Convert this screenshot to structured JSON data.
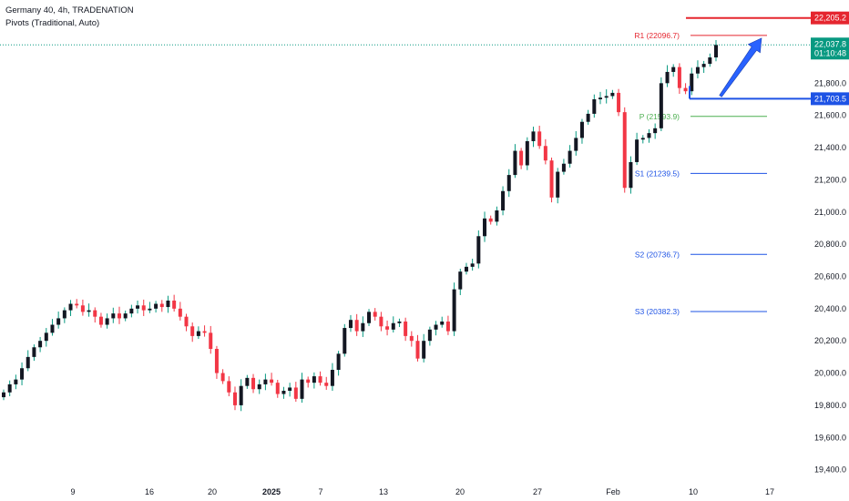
{
  "header": {
    "title": "Germany 40, 4h, TRADENATION",
    "indicator": "Pivots (Traditional, Auto)"
  },
  "colors": {
    "up": "#089981",
    "down": "#f23645",
    "candle_body": "#131722",
    "resistance": "#e5262f",
    "support": "#1e53e5",
    "pivot": "#4caf50",
    "current_price": "#089981",
    "arrow": "#2962ff"
  },
  "chart_data": {
    "type": "candlestick",
    "x_ticks": [
      "9",
      "16",
      "20",
      "2025",
      "7",
      "13",
      "20",
      "27",
      "Feb",
      "10",
      "17"
    ],
    "y_ticks": [
      "19,400.0",
      "19,600.0",
      "19,800.0",
      "20,000.0",
      "20,200.0",
      "20,400.0",
      "20,600.0",
      "20,800.0",
      "21,000.0",
      "21,200.0",
      "21,400.0",
      "21,600.0",
      "21,800.0"
    ],
    "y_range": [
      19330,
      22260
    ],
    "pivots": [
      {
        "name": "R1",
        "label": "R1 (22096.7)",
        "value": 22096.7
      },
      {
        "name": "P",
        "label": "P (21593.9)",
        "value": 21593.9
      },
      {
        "name": "S1",
        "label": "S1 (21239.5)",
        "value": 21239.5
      },
      {
        "name": "S2",
        "label": "S2 (20736.7)",
        "value": 20736.7
      },
      {
        "name": "S3",
        "label": "S3 (20382.3)",
        "value": 20382.3
      }
    ],
    "levels": [
      {
        "label": "22,205.2",
        "value": 22205.2,
        "role": "resistance"
      },
      {
        "label": "21,703.5",
        "value": 21703.5,
        "role": "support"
      }
    ],
    "current_price": {
      "label": "22,037.8",
      "countdown": "01:10:48",
      "value": 22037.8
    },
    "series_close": [
      19880,
      19930,
      19960,
      20030,
      20100,
      20160,
      20200,
      20250,
      20300,
      20340,
      20390,
      20430,
      20420,
      20380,
      20390,
      20350,
      20300,
      20340,
      20370,
      20340,
      20370,
      20400,
      20420,
      20390,
      20400,
      20430,
      20410,
      20450,
      20400,
      20350,
      20290,
      20230,
      20260,
      20250,
      20150,
      20000,
      19950,
      19880,
      19800,
      19920,
      19970,
      19900,
      19930,
      19960,
      19940,
      19870,
      19890,
      19910,
      19840,
      19960,
      19940,
      19980,
      19940,
      19920,
      20020,
      20120,
      20280,
      20330,
      20260,
      20310,
      20380,
      20350,
      20290,
      20270,
      20310,
      20320,
      20230,
      20200,
      20090,
      20200,
      20270,
      20300,
      20320,
      20260,
      20520,
      20630,
      20660,
      20680,
      20850,
      20960,
      20940,
      21010,
      21130,
      21230,
      21380,
      21290,
      21440,
      21500,
      21410,
      21320,
      21090,
      21250,
      21300,
      21380,
      21460,
      21560,
      21610,
      21700,
      21710,
      21720,
      21740,
      21620,
      21150,
      21310,
      21450,
      21460,
      21490,
      21520,
      21800,
      21870,
      21900,
      21770,
      21750,
      21860,
      21900,
      21920,
      21960,
      22037.8
    ]
  }
}
